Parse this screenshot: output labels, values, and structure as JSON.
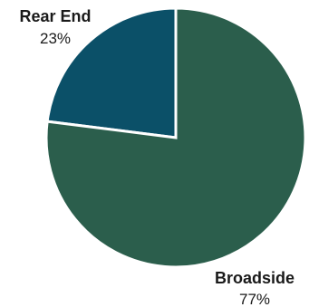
{
  "chart_data": {
    "type": "pie",
    "title": "",
    "slices": [
      {
        "name": "Rear End",
        "value": 23,
        "label": "23%",
        "color": "#0b5068"
      },
      {
        "name": "Broadside",
        "value": 77,
        "label": "77%",
        "color": "#2b5e4c"
      }
    ],
    "border_color": "#ffffff",
    "legend": "none",
    "labels": "outside"
  }
}
